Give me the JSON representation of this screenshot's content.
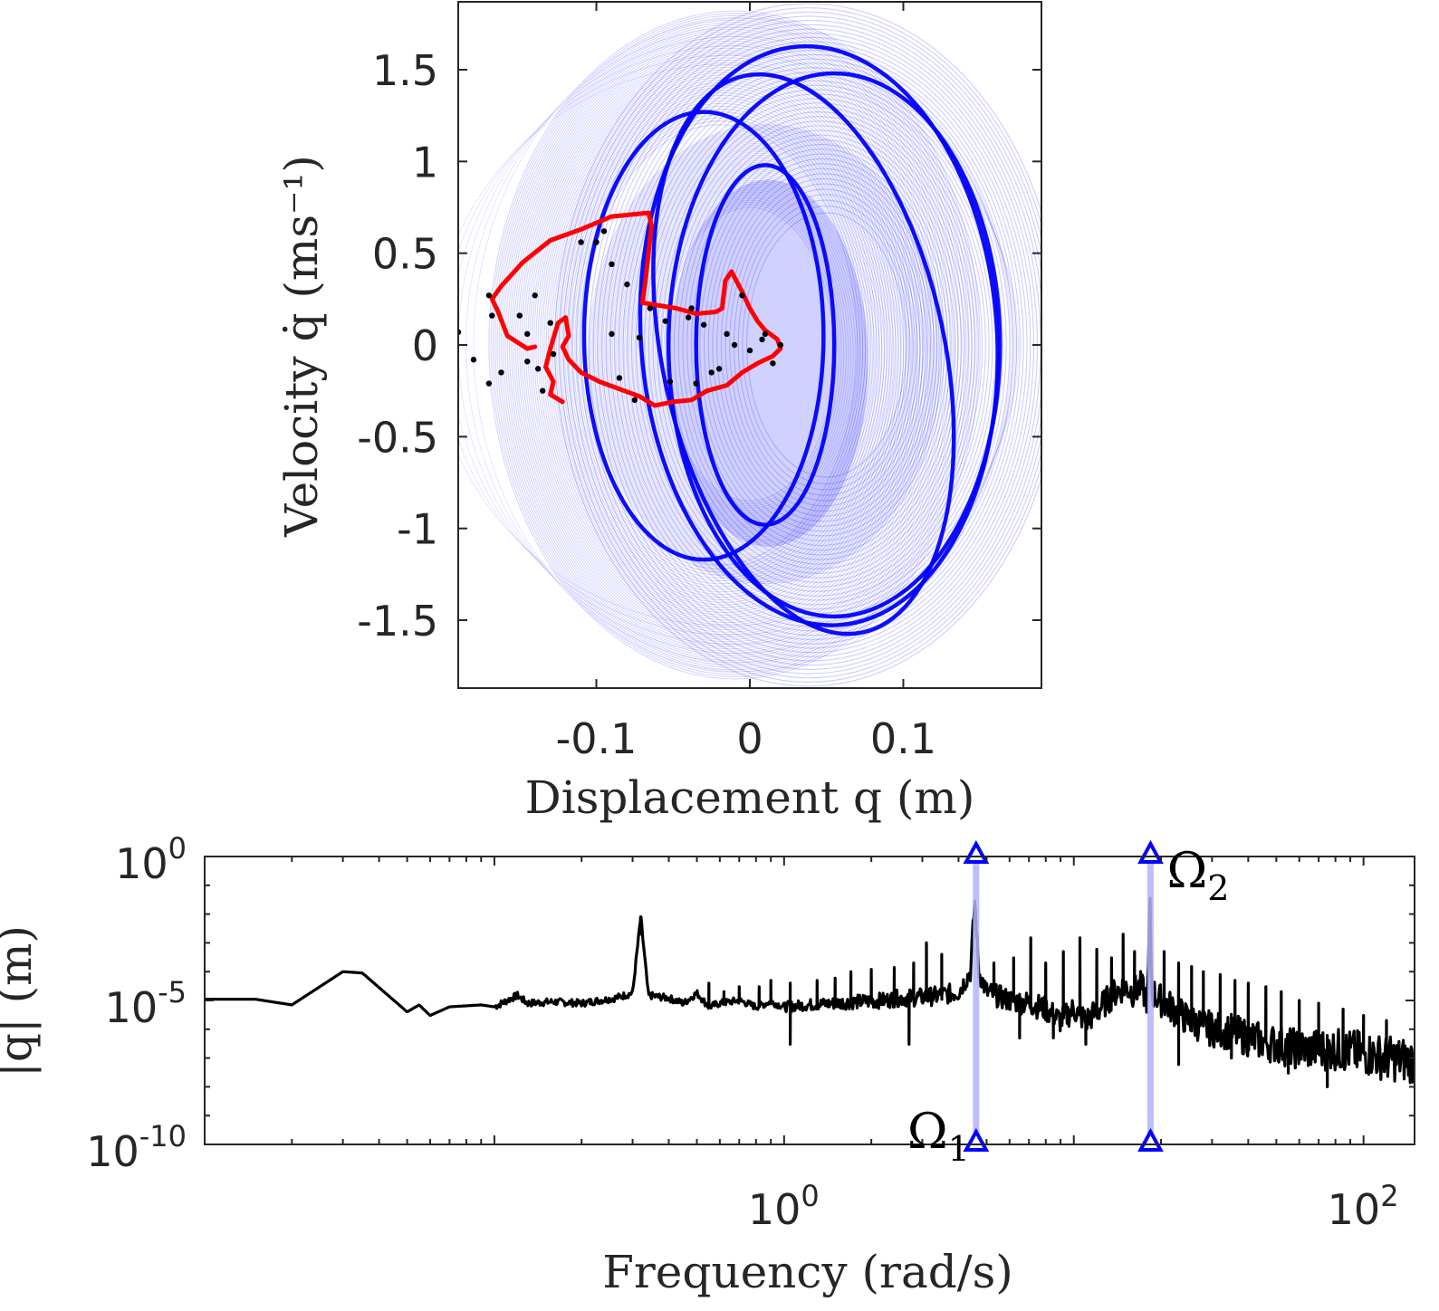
{
  "colors": {
    "orbit": "#0000ff",
    "section": "#ff0000",
    "points": "#000000",
    "spectrum": "#000000",
    "marker": "#0000ff",
    "marker_line": "#b3b3ff",
    "axis": "#262626"
  },
  "chart_data": [
    {
      "type": "line",
      "name": "phase-portrait",
      "xlabel": "Displacement q (m)",
      "ylabel": "Velocity q̇ (ms⁻¹)",
      "xlim": [
        -0.19,
        0.19
      ],
      "ylim": [
        -1.87,
        1.87
      ],
      "xticks": [
        -0.1,
        0,
        0.1
      ],
      "xtick_labels": [
        "-0.1",
        "0",
        "0.1"
      ],
      "yticks": [
        -1.5,
        -1,
        -0.5,
        0,
        0.5,
        1,
        1.5
      ],
      "ytick_labels": [
        "-1.5",
        "-1",
        "-0.5",
        "0",
        "0.5",
        "1",
        "1.5"
      ],
      "grid": false,
      "series": [
        {
          "kind": "orbit-bands",
          "bands": [
            {
              "cx": 0.05,
              "cy": 0.0,
              "rx_outer": 0.165,
              "ry_outer": 1.86,
              "rx_inner": 0.052,
              "ry_inner": 0.72,
              "density": 0.55
            },
            {
              "cx": -0.02,
              "cy": 0.0,
              "rx_outer": 0.16,
              "ry_outer": 1.82,
              "rx_inner": 0.09,
              "ry_inner": 1.2,
              "density": 0.35
            },
            {
              "cx": 0.0,
              "cy": -0.05,
              "rx_outer": 0.115,
              "ry_outer": 1.25,
              "rx_inner": 0.055,
              "ry_inner": 0.8,
              "density": 0.3
            }
          ],
          "strong_orbits": [
            {
              "cx": 0.055,
              "cy": 0.0,
              "rx": 0.108,
              "ry": 1.48,
              "rot": 0.0
            },
            {
              "cx": 0.045,
              "cy": 0.05,
              "rx": 0.116,
              "ry": 1.58,
              "rot": -4.0
            },
            {
              "cx": -0.03,
              "cy": 0.05,
              "rx": 0.078,
              "ry": 1.22,
              "rot": 0.0
            },
            {
              "cx": 0.035,
              "cy": -0.05,
              "rx": 0.092,
              "ry": 1.55,
              "rot": -12.0
            },
            {
              "cx": 0.01,
              "cy": 0.0,
              "rx": 0.045,
              "ry": 0.98,
              "rot": 0.0
            }
          ]
        },
        {
          "kind": "poincare-section",
          "points": [
            [
              -0.122,
              -0.31
            ],
            [
              -0.13,
              -0.27
            ],
            [
              -0.128,
              -0.2
            ],
            [
              -0.133,
              -0.12
            ],
            [
              -0.13,
              -0.02
            ],
            [
              -0.125,
              0.12
            ],
            [
              -0.12,
              0.15
            ],
            [
              -0.118,
              0.05
            ],
            [
              -0.122,
              -0.01
            ],
            [
              -0.118,
              -0.08
            ],
            [
              -0.11,
              -0.15
            ],
            [
              -0.098,
              -0.2
            ],
            [
              -0.085,
              -0.24
            ],
            [
              -0.072,
              -0.28
            ],
            [
              -0.062,
              -0.33
            ],
            [
              -0.05,
              -0.31
            ],
            [
              -0.038,
              -0.3
            ],
            [
              -0.028,
              -0.25
            ],
            [
              -0.015,
              -0.22
            ],
            [
              -0.005,
              -0.15
            ],
            [
              0.005,
              -0.1
            ],
            [
              0.015,
              -0.06
            ],
            [
              0.02,
              -0.02
            ],
            [
              0.018,
              0.03
            ],
            [
              0.01,
              0.08
            ],
            [
              0.005,
              0.13
            ],
            [
              0.0,
              0.2
            ],
            [
              -0.005,
              0.29
            ],
            [
              -0.012,
              0.4
            ],
            [
              -0.016,
              0.35
            ],
            [
              -0.018,
              0.2
            ],
            [
              -0.022,
              0.18
            ],
            [
              -0.035,
              0.17
            ],
            [
              -0.048,
              0.2
            ],
            [
              -0.07,
              0.23
            ],
            [
              -0.068,
              0.35
            ],
            [
              -0.066,
              0.5
            ],
            [
              -0.064,
              0.65
            ],
            [
              -0.066,
              0.72
            ],
            [
              -0.09,
              0.7
            ],
            [
              -0.11,
              0.63
            ],
            [
              -0.13,
              0.57
            ],
            [
              -0.148,
              0.45
            ],
            [
              -0.162,
              0.32
            ],
            [
              -0.168,
              0.25
            ],
            [
              -0.164,
              0.18
            ],
            [
              -0.158,
              0.05
            ],
            [
              -0.145,
              -0.02
            ],
            [
              -0.14,
              -0.01
            ]
          ]
        },
        {
          "kind": "scatter",
          "points": [
            [
              -0.19,
              0.07
            ],
            [
              -0.18,
              -0.08
            ],
            [
              -0.17,
              0.27
            ],
            [
              -0.168,
              0.16
            ],
            [
              -0.17,
              -0.21
            ],
            [
              -0.162,
              -0.15
            ],
            [
              -0.15,
              0.16
            ],
            [
              -0.145,
              0.06
            ],
            [
              -0.145,
              -0.09
            ],
            [
              -0.14,
              0.27
            ],
            [
              -0.138,
              -0.13
            ],
            [
              -0.135,
              -0.25
            ],
            [
              -0.13,
              0.12
            ],
            [
              -0.128,
              -0.05
            ],
            [
              -0.11,
              0.56
            ],
            [
              -0.095,
              0.62
            ],
            [
              -0.09,
              0.44
            ],
            [
              -0.09,
              0.06
            ],
            [
              -0.085,
              -0.18
            ],
            [
              -0.08,
              0.33
            ],
            [
              -0.075,
              -0.3
            ],
            [
              -0.072,
              0.04
            ],
            [
              -0.065,
              0.2
            ],
            [
              -0.055,
              0.13
            ],
            [
              -0.052,
              -0.2
            ],
            [
              -0.04,
              0.15
            ],
            [
              -0.035,
              -0.21
            ],
            [
              -0.03,
              0.11
            ],
            [
              -0.025,
              -0.15
            ],
            [
              -0.015,
              0.06
            ],
            [
              -0.02,
              -0.13
            ],
            [
              -0.005,
              0.27
            ],
            [
              0.0,
              -0.03
            ],
            [
              0.008,
              0.03
            ],
            [
              0.01,
              0.06
            ],
            [
              0.015,
              -0.1
            ],
            [
              0.02,
              0.0
            ],
            [
              -0.01,
              0.0
            ],
            [
              -0.038,
              0.2
            ],
            [
              -0.1,
              0.56
            ]
          ]
        }
      ]
    },
    {
      "type": "line",
      "name": "frequency-spectrum",
      "xscale": "log",
      "yscale": "log",
      "xlabel": "Frequency (rad/s)",
      "ylabel": "|q| (m)",
      "xlim": [
        0.01,
        150
      ],
      "ylim": [
        1e-10,
        1
      ],
      "xticks": [
        1,
        100
      ],
      "xtick_labels": [
        {
          "base": "10",
          "exp": "0"
        },
        {
          "base": "10",
          "exp": "2"
        }
      ],
      "yticks": [
        1,
        1e-05,
        1e-10
      ],
      "ytick_labels": [
        {
          "base": "10",
          "exp": "0"
        },
        {
          "base": "10",
          "exp": "-5"
        },
        {
          "base": "10",
          "exp": "-10"
        }
      ],
      "grid": false,
      "annotations": [
        {
          "label": "Ω",
          "sub": "1",
          "x": 4.6
        },
        {
          "label": "Ω",
          "sub": "2",
          "x": 18.4
        }
      ],
      "series": [
        {
          "kind": "spectrum",
          "points": [
            [
              0.01,
              1.1e-05
            ],
            [
              0.015,
              1.1e-05
            ],
            [
              0.02,
              7e-06
            ],
            [
              0.03,
              0.0001
            ],
            [
              0.035,
              9e-05
            ],
            [
              0.05,
              4e-06
            ],
            [
              0.055,
              7e-06
            ],
            [
              0.06,
              3e-06
            ],
            [
              0.07,
              6e-06
            ],
            [
              0.09,
              7e-06
            ],
            [
              0.1,
              6e-06
            ],
            [
              0.12,
              1.5e-05
            ],
            [
              0.13,
              8e-06
            ],
            [
              0.16,
              9e-06
            ],
            [
              0.2,
              8e-06
            ],
            [
              0.26,
              1.2e-05
            ],
            [
              0.3,
              1.8e-05
            ],
            [
              0.32,
              0.008
            ],
            [
              0.34,
              1.5e-05
            ],
            [
              0.4,
              1.2e-05
            ],
            [
              0.45,
              8e-06
            ],
            [
              0.5,
              1.8e-05
            ],
            [
              0.55,
              6e-06
            ],
            [
              0.6,
              8e-06
            ],
            [
              0.7,
              1e-05
            ],
            [
              0.8,
              6e-06
            ],
            [
              0.9,
              9e-06
            ],
            [
              1.0,
              6e-06
            ],
            [
              1.2,
              7e-06
            ],
            [
              1.5,
              8e-06
            ],
            [
              1.8,
              9e-06
            ],
            [
              2.2,
              1e-05
            ],
            [
              2.5,
              1.2e-05
            ],
            [
              3.0,
              1.3e-05
            ],
            [
              3.5,
              1.5e-05
            ],
            [
              4.0,
              2e-05
            ],
            [
              4.4,
              0.0001
            ],
            [
              4.55,
              0.03
            ],
            [
              4.7,
              0.0001
            ],
            [
              5.0,
              2e-05
            ],
            [
              6.0,
              1e-05
            ],
            [
              7.0,
              8e-06
            ],
            [
              8.0,
              5e-06
            ],
            [
              9.0,
              2e-06
            ],
            [
              10.0,
              5e-06
            ],
            [
              11.0,
              2e-06
            ],
            [
              12.0,
              4e-06
            ],
            [
              13.0,
              1e-05
            ],
            [
              14.0,
              2e-05
            ],
            [
              15.0,
              3e-05
            ],
            [
              16.0,
              2e-05
            ],
            [
              17.0,
              3e-05
            ],
            [
              18.0,
              1e-05
            ],
            [
              18.3,
              0.03
            ],
            [
              18.6,
              2e-05
            ],
            [
              20.0,
              1e-05
            ],
            [
              25.0,
              2e-06
            ],
            [
              30.0,
              1e-06
            ],
            [
              35.0,
              8e-07
            ],
            [
              40.0,
              5e-07
            ],
            [
              50.0,
              3e-07
            ],
            [
              60.0,
              2e-07
            ],
            [
              70.0,
              2e-07
            ],
            [
              80.0,
              2e-07
            ],
            [
              100.0,
              1.5e-07
            ],
            [
              120.0,
              1e-07
            ],
            [
              150.0,
              8e-08
            ]
          ],
          "spikes": [
            [
              0.32,
              0.002
            ],
            [
              0.55,
              4e-05
            ],
            [
              0.62,
              2e-05
            ],
            [
              0.7,
              3e-05
            ],
            [
              0.82,
              3e-05
            ],
            [
              0.9,
              5e-05
            ],
            [
              1.05,
              4e-05
            ],
            [
              1.3,
              5e-05
            ],
            [
              1.5,
              6e-05
            ],
            [
              1.7,
              0.0001
            ],
            [
              2.0,
              0.00012
            ],
            [
              2.4,
              0.00014
            ],
            [
              2.8,
              0.0002
            ],
            [
              3.1,
              0.001
            ],
            [
              3.5,
              0.0004
            ],
            [
              5.3,
              0.0002
            ],
            [
              6.2,
              0.0003
            ],
            [
              7.1,
              0.0015
            ],
            [
              8.0,
              0.0002
            ],
            [
              9.2,
              0.0005
            ],
            [
              10.5,
              0.0015
            ],
            [
              12.0,
              0.0006
            ],
            [
              13.5,
              0.0003
            ],
            [
              14.8,
              0.002
            ],
            [
              16.2,
              0.0005
            ],
            [
              20.5,
              0.0005
            ],
            [
              23.0,
              0.0002
            ],
            [
              25.5,
              0.00015
            ],
            [
              28.0,
              0.0001
            ],
            [
              32.0,
              8e-05
            ],
            [
              36.0,
              5e-05
            ],
            [
              40.0,
              4e-05
            ],
            [
              46.0,
              3e-05
            ],
            [
              52.0,
              2e-05
            ],
            [
              60.0,
              1e-05
            ],
            [
              70.0,
              8e-06
            ],
            [
              85.0,
              5e-06
            ],
            [
              100.0,
              3e-06
            ],
            [
              120.0,
              2e-06
            ]
          ],
          "dips": [
            [
              1.05,
              3e-07
            ],
            [
              2.7,
              3e-07
            ],
            [
              6.5,
              5e-07
            ],
            [
              8.5,
              5e-07
            ],
            [
              11.0,
              3e-07
            ],
            [
              23.0,
              6e-08
            ],
            [
              35.0,
              1e-07
            ],
            [
              55.0,
              3e-08
            ],
            [
              75.0,
              1e-08
            ],
            [
              95.0,
              5e-08
            ],
            [
              130.0,
              6e-08
            ]
          ]
        }
      ]
    }
  ]
}
